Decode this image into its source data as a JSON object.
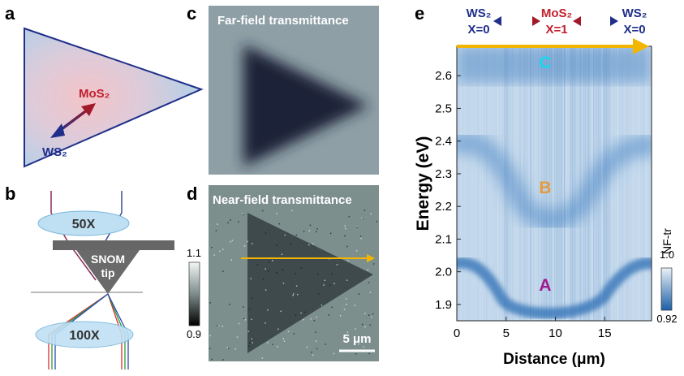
{
  "panels": {
    "a": {
      "label": "a",
      "mos2": "MoS₂",
      "ws2": "WS₂"
    },
    "b": {
      "label": "b",
      "lens_top": "50X",
      "tip_line1": "SNOM",
      "tip_line2": "tip",
      "lens_bottom": "100X"
    },
    "c": {
      "label": "c",
      "title": "Far-field transmittance"
    },
    "d": {
      "label": "d",
      "title": "Near-field transmittance",
      "colorbar_ticks": [
        1.1,
        0.9
      ],
      "scale_bar": "5 μm"
    },
    "e": {
      "label": "e",
      "header": [
        {
          "material": "WS₂",
          "x": "X=0"
        },
        {
          "material": "MoS₂",
          "x": "X=1"
        },
        {
          "material": "WS₂",
          "x": "X=0"
        }
      ]
    }
  },
  "chart_data": {
    "type": "heatmap",
    "xlabel": "Distance (μm)",
    "ylabel": "Energy (eV)",
    "xlim": [
      0,
      19.75
    ],
    "ylim": [
      1.85,
      2.69
    ],
    "xticks": [
      0,
      5,
      10,
      15
    ],
    "yticks": [
      1.9,
      {
        "value": 2,
        "label": "2.0"
      },
      2.1,
      2.2,
      2.3,
      2.4,
      2.5,
      2.6
    ],
    "annotations": [
      "C",
      "B",
      "A"
    ],
    "colorbar": {
      "label": "NF-tr",
      "ticks": [
        {
          "value": 1,
          "label": "1.0"
        },
        0.92
      ]
    }
  }
}
